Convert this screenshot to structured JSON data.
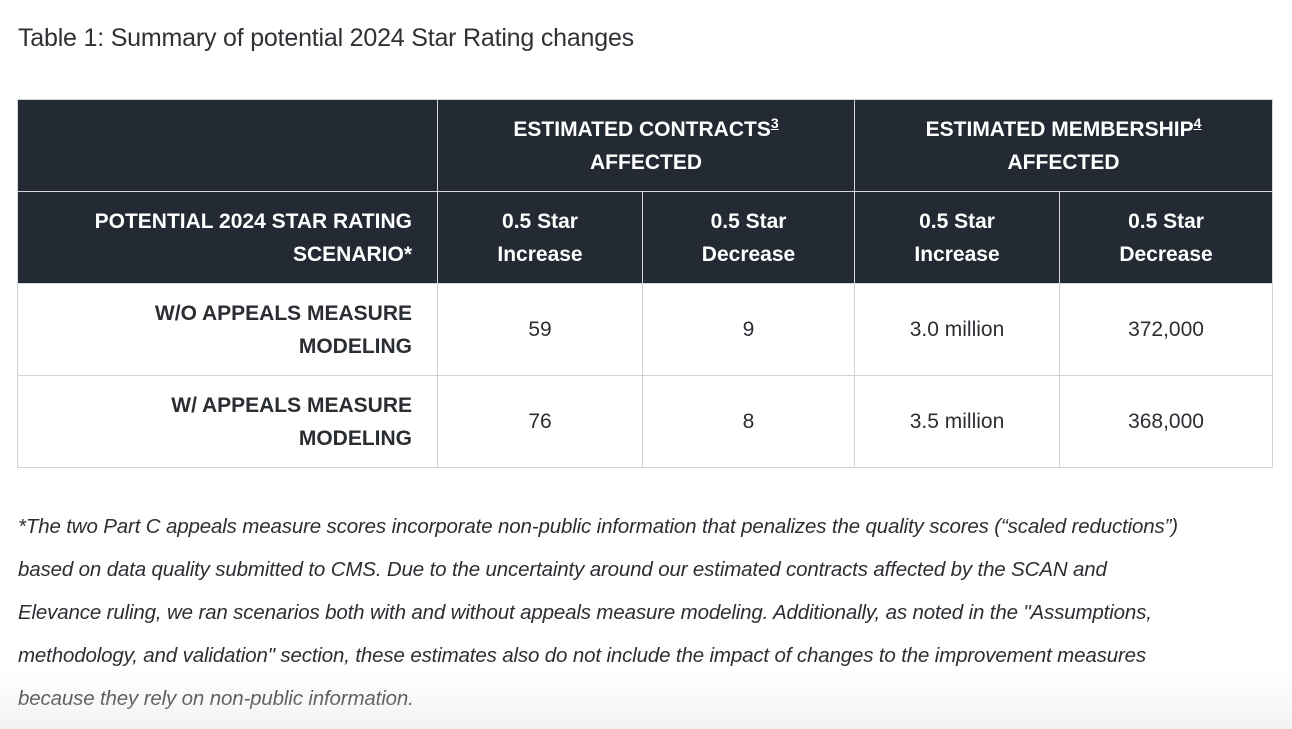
{
  "caption": "Table 1: Summary of potential 2024 Star Rating changes",
  "table": {
    "group_headers": [
      {
        "text": "ESTIMATED CONTRACTS",
        "footnote": "3",
        "line2": "AFFECTED"
      },
      {
        "text": "ESTIMATED MEMBERSHIP",
        "footnote": "4",
        "line2": "AFFECTED"
      }
    ],
    "scenario_header": {
      "line1": "POTENTIAL 2024 STAR RATING",
      "line2": "SCENARIO*"
    },
    "sub_headers": [
      {
        "line1": "0.5 Star",
        "line2": "Increase"
      },
      {
        "line1": "0.5 Star",
        "line2": "Decrease"
      },
      {
        "line1": "0.5 Star",
        "line2": "Increase"
      },
      {
        "line1": "0.5 Star",
        "line2": "Decrease"
      }
    ],
    "rows": [
      {
        "label_line1": "W/O APPEALS MEASURE",
        "label_line2": "MODELING",
        "contracts_increase": "59",
        "contracts_decrease": "9",
        "membership_increase": "3.0 million",
        "membership_decrease": "372,000"
      },
      {
        "label_line1": "W/ APPEALS MEASURE",
        "label_line2": "MODELING",
        "contracts_increase": "76",
        "contracts_decrease": "8",
        "membership_increase": "3.5 million",
        "membership_decrease": "368,000"
      }
    ]
  },
  "footnote": {
    "lines": [
      "*The two Part C appeals measure scores incorporate non-public information that penalizes the quality scores (“scaled reductions”)",
      "based on data quality submitted to CMS. Due to the uncertainty around our estimated contracts affected by the SCAN and",
      "Elevance ruling, we ran scenarios both with and without appeals measure modeling. Additionally, as noted in the \"Assumptions,",
      "methodology, and validation\" section, these estimates also do not include the impact of changes to the improvement measures",
      "because they rely on non-public information."
    ]
  },
  "colors": {
    "header_bg": "#242a33",
    "header_text": "#ffffff",
    "border": "#cfd2d6",
    "body_text": "#2b2f33"
  }
}
